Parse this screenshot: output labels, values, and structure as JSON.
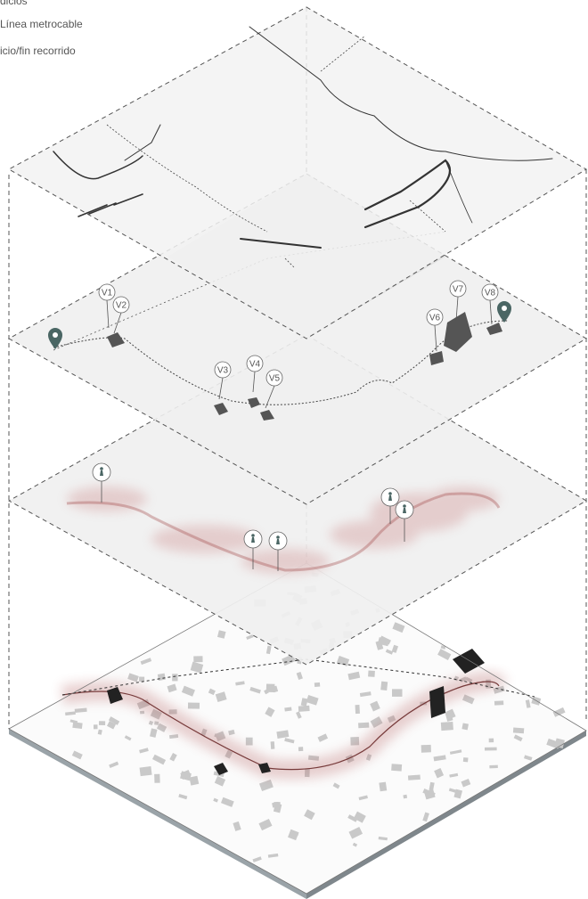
{
  "legend": {
    "items": [
      {
        "key": "edificios",
        "label": "dicios"
      },
      {
        "key": "metrocable",
        "label": "Línea metrocable"
      },
      {
        "key": "inicio_fin",
        "label": "icio/fin recorrido"
      }
    ]
  },
  "views": [
    "V1",
    "V2",
    "V3",
    "V4",
    "V5",
    "V6",
    "V7",
    "V8"
  ],
  "colors": {
    "line": "#444444",
    "dash": "#555555",
    "plane": "#f2f2f2",
    "plane_shade": "#d9d9d9",
    "heat": "#b05a5a",
    "pin": "#4a6664",
    "building": "#c8c8c8"
  }
}
